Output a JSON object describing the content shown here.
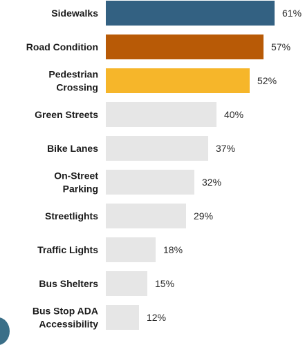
{
  "chart_data": {
    "type": "bar",
    "orientation": "horizontal",
    "categories": [
      [
        "Sidewalks"
      ],
      [
        "Road Condition"
      ],
      [
        "Pedestrian",
        "Crossing"
      ],
      [
        "Green Streets"
      ],
      [
        "Bike Lanes"
      ],
      [
        "On-Street",
        "Parking"
      ],
      [
        "Streetlights"
      ],
      [
        "Traffic Lights"
      ],
      [
        "Bus Shelters"
      ],
      [
        "Bus Stop ADA",
        "Accessibility"
      ]
    ],
    "values": [
      61,
      57,
      52,
      40,
      37,
      32,
      29,
      18,
      15,
      12
    ],
    "value_labels": [
      "61%",
      "57%",
      "52%",
      "40%",
      "37%",
      "32%",
      "29%",
      "18%",
      "15%",
      "12%"
    ],
    "bar_colors": [
      "#336182",
      "#b85a06",
      "#f6b62a",
      "#e6e6e6",
      "#e6e6e6",
      "#e6e6e6",
      "#e6e6e6",
      "#e6e6e6",
      "#e6e6e6",
      "#e6e6e6"
    ],
    "title": "",
    "xlabel": "",
    "ylabel": "",
    "xlim": [
      0,
      61
    ],
    "grid": false,
    "legend": "none"
  }
}
